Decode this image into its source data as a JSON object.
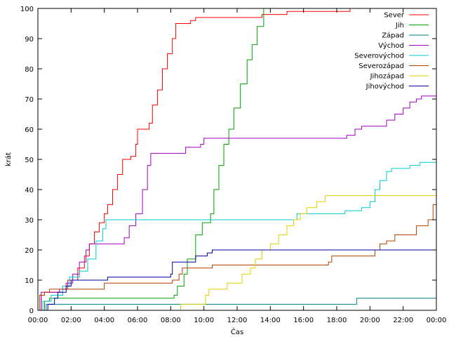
{
  "chart_data": {
    "type": "line",
    "xlabel": "Čas",
    "ylabel": "krát",
    "xlim": [
      0,
      24
    ],
    "ylim": [
      0,
      100
    ],
    "x_ticks": [
      "00:00",
      "02:00",
      "04:00",
      "06:00",
      "08:00",
      "10:00",
      "12:00",
      "14:00",
      "16:00",
      "18:00",
      "20:00",
      "22:00",
      "00:00"
    ],
    "y_ticks": [
      0,
      10,
      20,
      30,
      40,
      50,
      60,
      70,
      80,
      90,
      100
    ],
    "legend_position": "top-right",
    "grid": false,
    "series": [
      {
        "name": "Sever",
        "color": "#ff0000",
        "points": [
          [
            0,
            0
          ],
          [
            0.2,
            5
          ],
          [
            0.4,
            6
          ],
          [
            1.5,
            7
          ],
          [
            1.8,
            10
          ],
          [
            2.4,
            14
          ],
          [
            2.8,
            18
          ],
          [
            3.1,
            22
          ],
          [
            3.4,
            26
          ],
          [
            3.7,
            29
          ],
          [
            4.0,
            32
          ],
          [
            4.2,
            35
          ],
          [
            4.5,
            40
          ],
          [
            4.8,
            45
          ],
          [
            5.1,
            50
          ],
          [
            5.6,
            51
          ],
          [
            5.9,
            55
          ],
          [
            6.0,
            60
          ],
          [
            6.7,
            62
          ],
          [
            6.9,
            68
          ],
          [
            7.2,
            73
          ],
          [
            7.5,
            80
          ],
          [
            7.8,
            85
          ],
          [
            8.1,
            90
          ],
          [
            8.3,
            95
          ],
          [
            9.2,
            96
          ],
          [
            9.5,
            97
          ],
          [
            13.5,
            98
          ],
          [
            15.0,
            99
          ],
          [
            18.8,
            100
          ],
          [
            24,
            100
          ]
        ]
      },
      {
        "name": "Jih",
        "color": "#00a000",
        "points": [
          [
            0,
            0
          ],
          [
            0.4,
            3
          ],
          [
            0.7,
            4
          ],
          [
            8.2,
            5
          ],
          [
            8.4,
            8
          ],
          [
            8.8,
            12
          ],
          [
            9.0,
            17
          ],
          [
            9.5,
            25
          ],
          [
            9.9,
            29
          ],
          [
            10.4,
            32
          ],
          [
            10.6,
            40
          ],
          [
            10.9,
            48
          ],
          [
            11.2,
            55
          ],
          [
            11.5,
            60
          ],
          [
            11.8,
            67
          ],
          [
            12.2,
            75
          ],
          [
            12.6,
            83
          ],
          [
            12.9,
            88
          ],
          [
            13.2,
            94
          ],
          [
            13.6,
            100
          ],
          [
            24,
            100
          ]
        ]
      },
      {
        "name": "Západ",
        "color": "#008080",
        "points": [
          [
            0,
            0
          ],
          [
            0.5,
            2
          ],
          [
            19.0,
            2
          ],
          [
            19.2,
            4
          ],
          [
            24,
            4
          ]
        ]
      },
      {
        "name": "Východ",
        "color": "#a000c0",
        "points": [
          [
            0,
            0
          ],
          [
            0.2,
            6
          ],
          [
            0.9,
            6
          ],
          [
            1.3,
            7
          ],
          [
            1.7,
            9
          ],
          [
            2.1,
            12
          ],
          [
            2.5,
            16
          ],
          [
            2.9,
            20
          ],
          [
            3.1,
            22
          ],
          [
            5.2,
            24
          ],
          [
            5.5,
            28
          ],
          [
            5.9,
            32
          ],
          [
            6.3,
            40
          ],
          [
            6.6,
            48
          ],
          [
            6.8,
            52
          ],
          [
            8.9,
            54
          ],
          [
            9.8,
            55
          ],
          [
            10.0,
            57
          ],
          [
            18.6,
            58
          ],
          [
            19.1,
            60
          ],
          [
            19.5,
            61
          ],
          [
            21.0,
            63
          ],
          [
            21.5,
            65
          ],
          [
            22.0,
            67
          ],
          [
            22.4,
            69
          ],
          [
            22.8,
            70
          ],
          [
            23.1,
            71
          ],
          [
            24,
            71
          ]
        ]
      },
      {
        "name": "Severovýchod",
        "color": "#00cccc",
        "points": [
          [
            0,
            0
          ],
          [
            0.3,
            3
          ],
          [
            0.8,
            5
          ],
          [
            1.5,
            8
          ],
          [
            1.9,
            11
          ],
          [
            2.5,
            13
          ],
          [
            3.0,
            17
          ],
          [
            3.5,
            23
          ],
          [
            3.9,
            27
          ],
          [
            4.1,
            30
          ],
          [
            11.0,
            30
          ],
          [
            15.6,
            32
          ],
          [
            18.5,
            33
          ],
          [
            19.5,
            34
          ],
          [
            20.0,
            36
          ],
          [
            20.3,
            40
          ],
          [
            20.6,
            43
          ],
          [
            21.0,
            46
          ],
          [
            21.3,
            47
          ],
          [
            22.4,
            48
          ],
          [
            23.0,
            49
          ],
          [
            24,
            49
          ]
        ]
      },
      {
        "name": "Severozápad",
        "color": "#b04000",
        "points": [
          [
            0,
            0
          ],
          [
            0.1,
            5
          ],
          [
            0.4,
            6
          ],
          [
            0.7,
            7
          ],
          [
            1.5,
            7
          ],
          [
            4.0,
            9
          ],
          [
            8.1,
            10
          ],
          [
            8.5,
            12
          ],
          [
            8.7,
            14
          ],
          [
            9.0,
            14
          ],
          [
            10.5,
            15
          ],
          [
            17.5,
            16
          ],
          [
            17.7,
            18
          ],
          [
            20.3,
            20
          ],
          [
            20.6,
            22
          ],
          [
            21.0,
            23
          ],
          [
            21.5,
            25
          ],
          [
            22.8,
            28
          ],
          [
            23.5,
            30
          ],
          [
            23.8,
            35
          ],
          [
            24,
            37
          ]
        ]
      },
      {
        "name": "Jihozápad",
        "color": "#e0d000",
        "points": [
          [
            0,
            0
          ],
          [
            8.6,
            2
          ],
          [
            10.1,
            5
          ],
          [
            10.3,
            7
          ],
          [
            11.4,
            9
          ],
          [
            12.3,
            12
          ],
          [
            12.8,
            14
          ],
          [
            13.1,
            17
          ],
          [
            13.5,
            20
          ],
          [
            14.0,
            22
          ],
          [
            14.5,
            25
          ],
          [
            15.0,
            28
          ],
          [
            15.4,
            30
          ],
          [
            15.8,
            32
          ],
          [
            16.2,
            34
          ],
          [
            16.8,
            36
          ],
          [
            17.3,
            38
          ],
          [
            24,
            38
          ]
        ]
      },
      {
        "name": "Jihovýchod",
        "color": "#0000a0",
        "points": [
          [
            0,
            0
          ],
          [
            0.6,
            2
          ],
          [
            1.0,
            4
          ],
          [
            1.2,
            6
          ],
          [
            1.7,
            8
          ],
          [
            2.0,
            10
          ],
          [
            4.2,
            11
          ],
          [
            8.0,
            12
          ],
          [
            8.1,
            16
          ],
          [
            9.2,
            16
          ],
          [
            9.5,
            18
          ],
          [
            10.2,
            19
          ],
          [
            10.5,
            20
          ],
          [
            24,
            20
          ]
        ]
      }
    ]
  }
}
